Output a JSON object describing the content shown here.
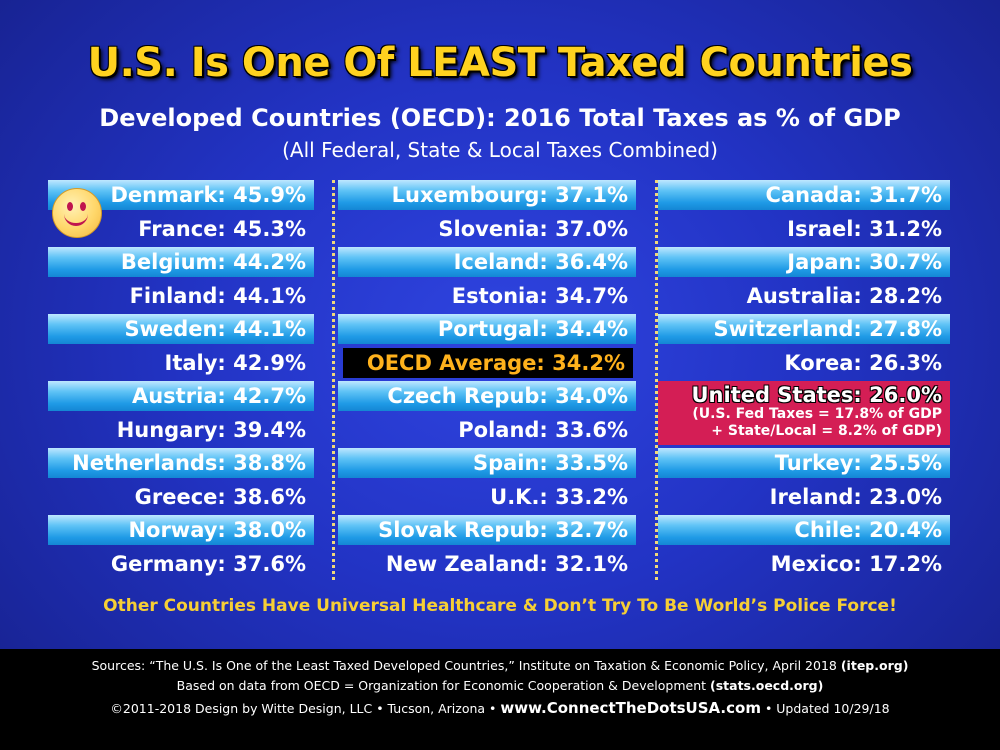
{
  "title": "U.S. Is One Of LEAST Taxed Countries",
  "subtitle": "Developed Countries (OECD): 2016 Total Taxes as % of GDP",
  "subtitle2": "(All Federal, State & Local Taxes Combined)",
  "chart_data": {
    "type": "table",
    "title": "U.S. Is One Of LEAST Taxed Countries",
    "subtitle": "Developed Countries (OECD): 2016 Total Taxes as % of GDP",
    "unit": "%",
    "columns": [
      [
        {
          "label": "Denmark: 45.9%",
          "country": "Denmark",
          "value": 45.9
        },
        {
          "label": "France: 45.3%",
          "country": "France",
          "value": 45.3
        },
        {
          "label": "Belgium: 44.2%",
          "country": "Belgium",
          "value": 44.2
        },
        {
          "label": "Finland: 44.1%",
          "country": "Finland",
          "value": 44.1
        },
        {
          "label": "Sweden: 44.1%",
          "country": "Sweden",
          "value": 44.1
        },
        {
          "label": "Italy: 42.9%",
          "country": "Italy",
          "value": 42.9
        },
        {
          "label": "Austria: 42.7%",
          "country": "Austria",
          "value": 42.7
        },
        {
          "label": "Hungary: 39.4%",
          "country": "Hungary",
          "value": 39.4
        },
        {
          "label": "Netherlands: 38.8%",
          "country": "Netherlands",
          "value": 38.8
        },
        {
          "label": "Greece: 38.6%",
          "country": "Greece",
          "value": 38.6
        },
        {
          "label": "Norway: 38.0%",
          "country": "Norway",
          "value": 38.0
        },
        {
          "label": "Germany: 37.6%",
          "country": "Germany",
          "value": 37.6
        }
      ],
      [
        {
          "label": "Luxembourg: 37.1%",
          "country": "Luxembourg",
          "value": 37.1
        },
        {
          "label": "Slovenia:  37.0%",
          "country": "Slovenia",
          "value": 37.0
        },
        {
          "label": "Iceland: 36.4%",
          "country": "Iceland",
          "value": 36.4
        },
        {
          "label": "Estonia: 34.7%",
          "country": "Estonia",
          "value": 34.7
        },
        {
          "label": "Portugal:  34.4%",
          "country": "Portugal",
          "value": 34.4
        },
        {
          "label": "OECD Average: 34.2%",
          "country": "OECD Average",
          "value": 34.2,
          "highlight": "average"
        },
        {
          "label": "Czech Repub: 34.0%",
          "country": "Czech Repub",
          "value": 34.0
        },
        {
          "label": "Poland: 33.6%",
          "country": "Poland",
          "value": 33.6
        },
        {
          "label": "Spain: 33.5%",
          "country": "Spain",
          "value": 33.5
        },
        {
          "label": "U.K.: 33.2%",
          "country": "U.K.",
          "value": 33.2
        },
        {
          "label": "Slovak Repub: 32.7%",
          "country": "Slovak Repub",
          "value": 32.7
        },
        {
          "label": "New Zealand:  32.1%",
          "country": "New Zealand",
          "value": 32.1
        }
      ],
      [
        {
          "label": "Canada: 31.7%",
          "country": "Canada",
          "value": 31.7
        },
        {
          "label": "Israel: 31.2%",
          "country": "Israel",
          "value": 31.2
        },
        {
          "label": "Japan: 30.7%",
          "country": "Japan",
          "value": 30.7
        },
        {
          "label": "Australia: 28.2%",
          "country": "Australia",
          "value": 28.2
        },
        {
          "label": "Switzerland: 27.8%",
          "country": "Switzerland",
          "value": 27.8
        },
        {
          "label": "Korea: 26.3%",
          "country": "Korea",
          "value": 26.3
        },
        {
          "label": "United States: 26.0%",
          "country": "United States",
          "value": 26.0,
          "highlight": "us",
          "note1": "(U.S. Fed Taxes = 17.8% of GDP",
          "note2": "+ State/Local = 8.2% of GDP)"
        },
        {
          "label": "Turkey: 25.5%",
          "country": "Turkey",
          "value": 25.5
        },
        {
          "label": "Ireland: 23.0%",
          "country": "Ireland",
          "value": 23.0
        },
        {
          "label": "Chile: 20.4%",
          "country": "Chile",
          "value": 20.4
        },
        {
          "label": "Mexico: 17.2%",
          "country": "Mexico",
          "value": 17.2
        }
      ]
    ]
  },
  "footer_message": "Other Countries Have Universal Healthcare & Don’t Try To Be World’s Police Force!",
  "footer": {
    "line1": "Sources: “The U.S. Is One of the Least Taxed Developed Countries,” Institute on Taxation & Economic Policy, April 2018",
    "line1_bold": "(itep.org)",
    "line2": "Based on data from OECD = Organization for Economic Cooperation & Development",
    "line2_bold": "(stats.oecd.org)",
    "line3_a": "©2011-2018 Design by Witte Design, LLC • Tucson, Arizona •",
    "line3_site": "www.ConnectTheDotsUSA.com",
    "line3_b": "• Updated 10/29/18"
  },
  "colors": {
    "background": "#2233c4",
    "title": "#ffd21f",
    "band": "#5fc3f6",
    "average_bg": "#000000",
    "average_text": "#ffb21c",
    "us_bg": "#d41e55",
    "footer_msg": "#f6cf35"
  },
  "icons": [
    "smiley-face-icon"
  ]
}
